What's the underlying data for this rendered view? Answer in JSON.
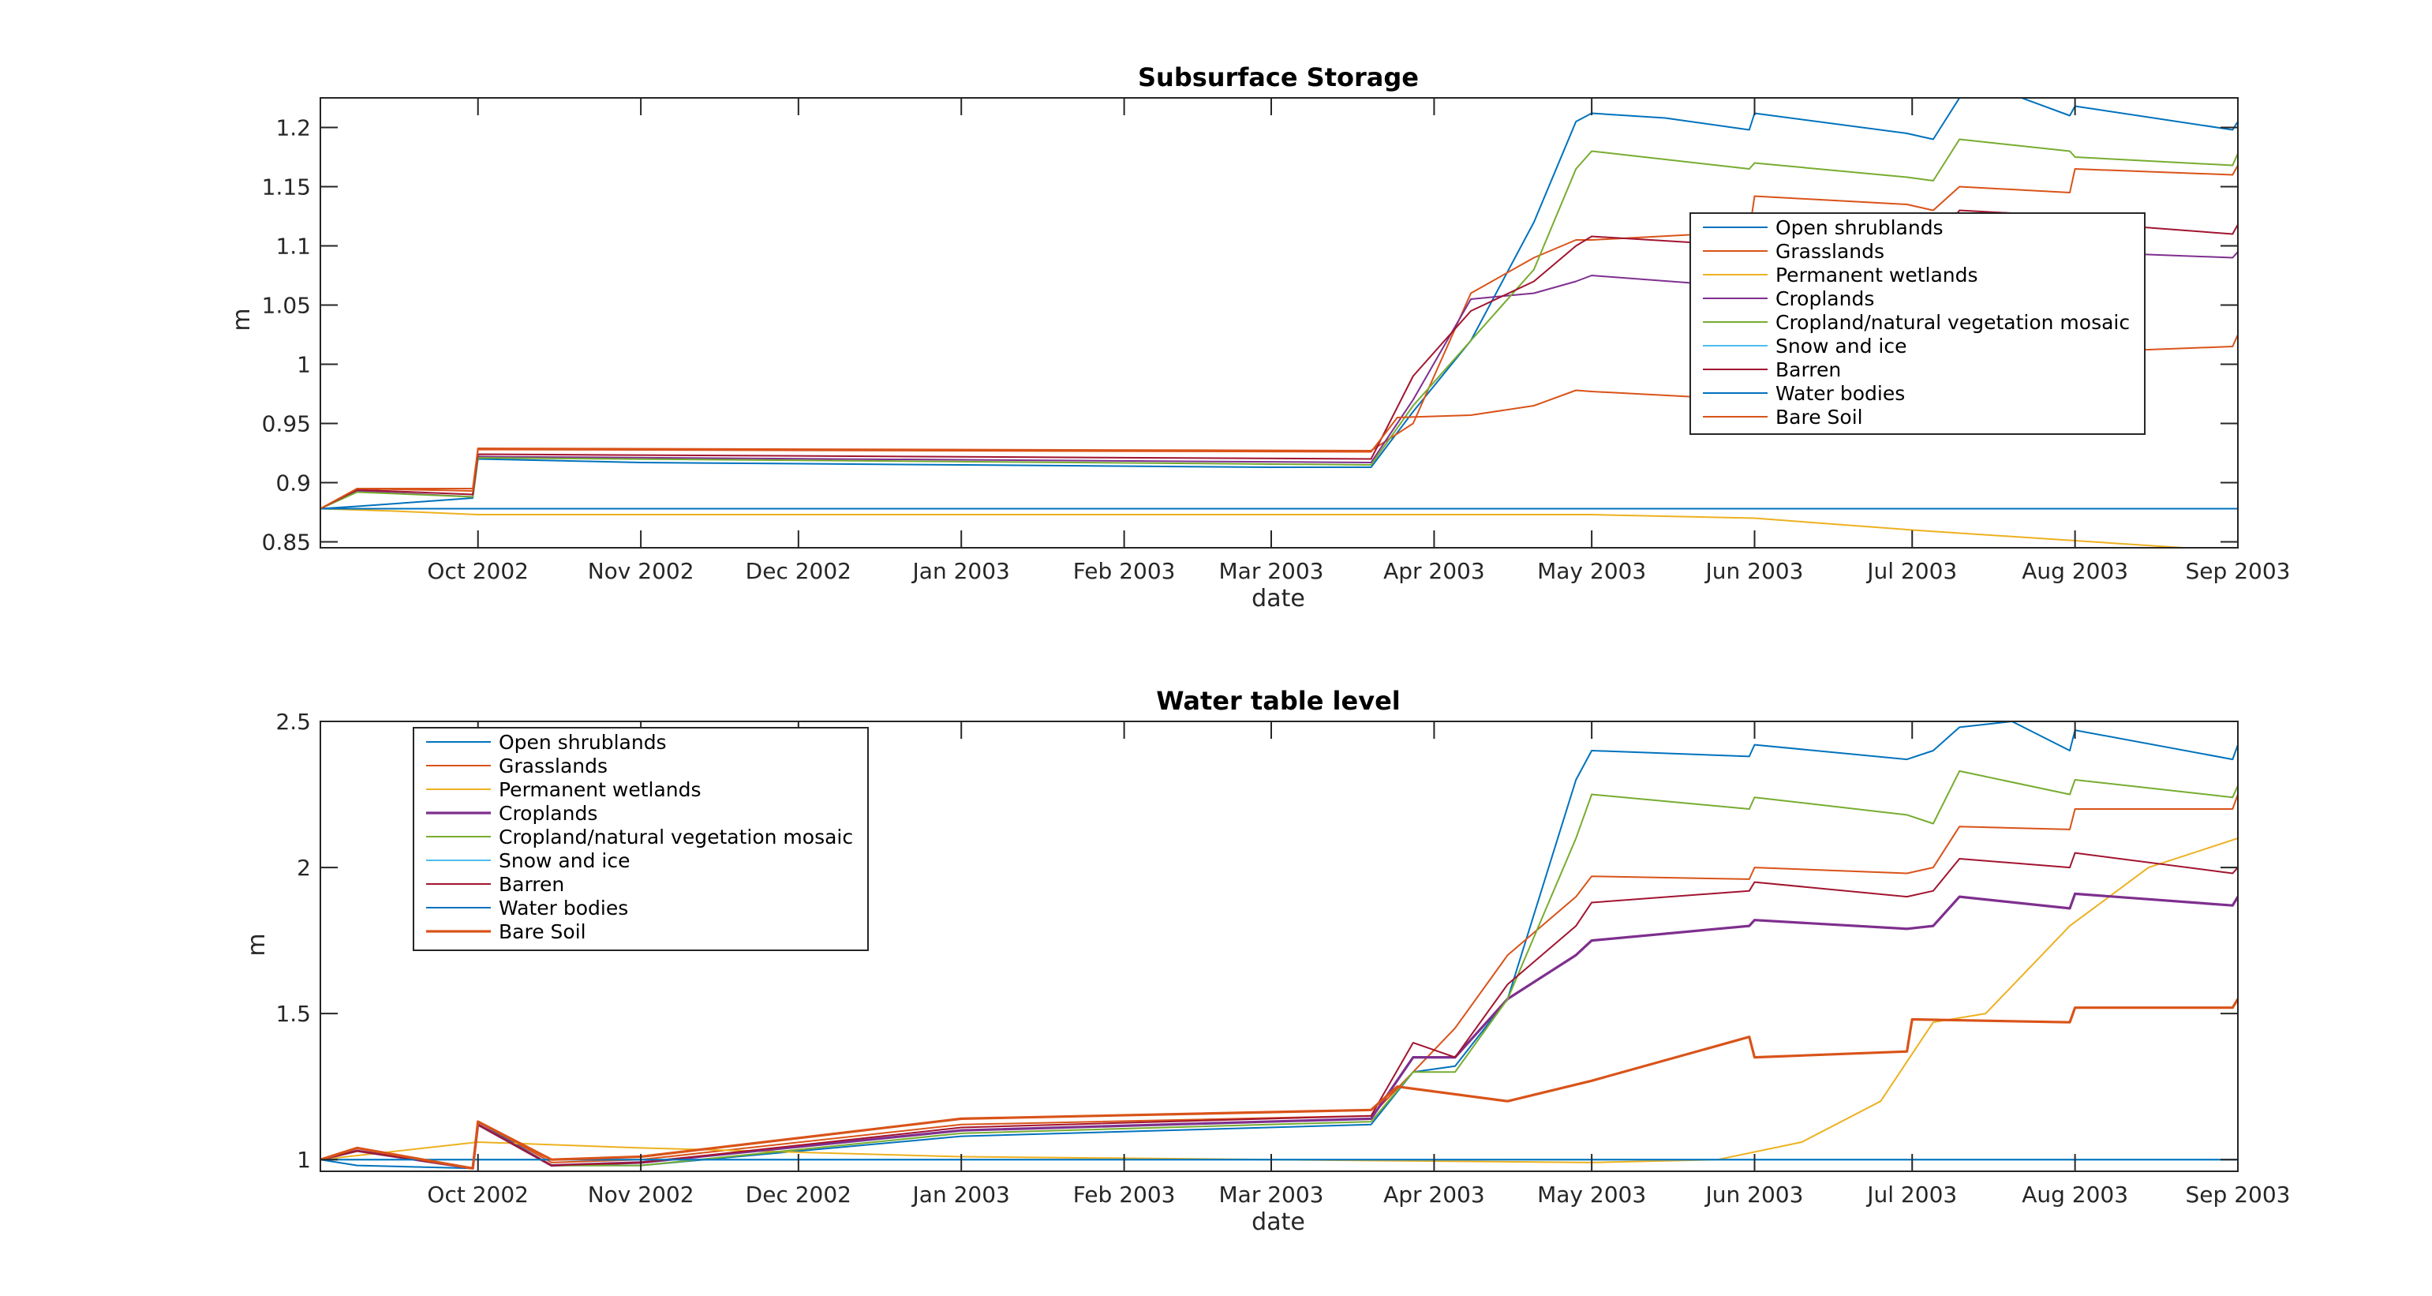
{
  "figure": {
    "background": "#ffffff",
    "x_tick_labels": [
      "Oct 2002",
      "Nov 2002",
      "Dec 2002",
      "Jan 2003",
      "Feb 2003",
      "Mar 2003",
      "Apr 2003",
      "May 2003",
      "Jun 2003",
      "Jul 2003",
      "Aug 2003",
      "Sep 2003"
    ],
    "x_tick_dates": [
      "2002-10-01",
      "2002-11-01",
      "2002-12-01",
      "2003-01-01",
      "2003-02-01",
      "2003-03-01",
      "2003-04-01",
      "2003-05-01",
      "2003-06-01",
      "2003-07-01",
      "2003-08-01",
      "2003-09-01"
    ]
  },
  "chart_data": [
    {
      "type": "line",
      "title": "Subsurface Storage",
      "xlabel": "date",
      "ylabel": "m",
      "xlim": [
        "2002-09-01",
        "2003-09-01"
      ],
      "ylim": [
        0.845,
        1.225
      ],
      "yticks": [
        0.85,
        0.9,
        0.95,
        1,
        1.05,
        1.1,
        1.15,
        1.2
      ],
      "ytick_labels": [
        "0.85",
        "0.9",
        "0.95",
        "1",
        "1.05",
        "1.1",
        "1.15",
        "1.2"
      ],
      "legend_position": "right",
      "series": [
        {
          "name": "Open shrublands",
          "color": "#0072BD",
          "x": [
            "2002-09-01",
            "2002-09-08",
            "2002-09-30",
            "2002-10-01",
            "2002-11-01",
            "2003-01-01",
            "2003-03-01",
            "2003-03-20",
            "2003-03-28",
            "2003-04-08",
            "2003-04-20",
            "2003-04-28",
            "2003-05-01",
            "2003-05-15",
            "2003-05-31",
            "2003-06-01",
            "2003-06-30",
            "2003-07-05",
            "2003-07-10",
            "2003-07-20",
            "2003-07-31",
            "2003-08-01",
            "2003-08-31",
            "2003-09-01"
          ],
          "values": [
            0.878,
            0.88,
            0.887,
            0.92,
            0.917,
            0.915,
            0.913,
            0.913,
            0.96,
            1.02,
            1.12,
            1.205,
            1.212,
            1.208,
            1.198,
            1.212,
            1.195,
            1.19,
            1.225,
            1.228,
            1.21,
            1.218,
            1.198,
            1.205
          ]
        },
        {
          "name": "Grasslands",
          "color": "#D95319",
          "x": [
            "2002-09-01",
            "2002-09-08",
            "2002-09-30",
            "2002-10-01",
            "2003-03-20",
            "2003-03-28",
            "2003-04-08",
            "2003-04-20",
            "2003-04-28",
            "2003-05-01",
            "2003-05-31",
            "2003-06-01",
            "2003-06-30",
            "2003-07-05",
            "2003-07-10",
            "2003-07-31",
            "2003-08-01",
            "2003-08-31",
            "2003-09-01"
          ],
          "values": [
            0.878,
            0.895,
            0.895,
            0.929,
            0.927,
            0.95,
            1.06,
            1.09,
            1.105,
            1.105,
            1.112,
            1.142,
            1.135,
            1.13,
            1.15,
            1.145,
            1.165,
            1.16,
            1.168
          ]
        },
        {
          "name": "Permanent wetlands",
          "color": "#EDB120",
          "x": [
            "2002-09-01",
            "2002-09-15",
            "2002-10-01",
            "2003-04-01",
            "2003-05-01",
            "2003-06-01",
            "2003-07-01",
            "2003-08-01",
            "2003-09-01"
          ],
          "values": [
            0.878,
            0.876,
            0.873,
            0.873,
            0.873,
            0.87,
            0.86,
            0.851,
            0.842
          ]
        },
        {
          "name": "Croplands",
          "color": "#7E2F8E",
          "x": [
            "2002-09-01",
            "2002-09-08",
            "2002-09-30",
            "2002-10-01",
            "2003-03-20",
            "2003-03-28",
            "2003-04-08",
            "2003-04-20",
            "2003-04-28",
            "2003-05-01",
            "2003-05-31",
            "2003-06-01",
            "2003-06-30",
            "2003-07-05",
            "2003-07-10",
            "2003-07-31",
            "2003-08-01",
            "2003-08-31",
            "2003-09-01"
          ],
          "values": [
            0.878,
            0.893,
            0.888,
            0.922,
            0.917,
            0.97,
            1.055,
            1.06,
            1.07,
            1.075,
            1.065,
            1.075,
            1.07,
            1.065,
            1.09,
            1.085,
            1.095,
            1.09,
            1.095
          ]
        },
        {
          "name": "Cropland/natural vegetation mosaic",
          "color": "#77AC30",
          "x": [
            "2002-09-01",
            "2002-09-08",
            "2002-09-30",
            "2002-10-01",
            "2003-03-20",
            "2003-03-28",
            "2003-04-08",
            "2003-04-20",
            "2003-04-28",
            "2003-05-01",
            "2003-05-31",
            "2003-06-01",
            "2003-06-30",
            "2003-07-05",
            "2003-07-10",
            "2003-07-31",
            "2003-08-01",
            "2003-08-31",
            "2003-09-01"
          ],
          "values": [
            0.878,
            0.892,
            0.888,
            0.921,
            0.915,
            0.965,
            1.02,
            1.08,
            1.165,
            1.18,
            1.165,
            1.17,
            1.158,
            1.155,
            1.19,
            1.18,
            1.175,
            1.168,
            1.178
          ]
        },
        {
          "name": "Snow and ice",
          "color": "#4DBEEE",
          "x": [
            "2002-09-01",
            "2003-09-01"
          ],
          "values": [
            0.878,
            0.878
          ]
        },
        {
          "name": "Barren",
          "color": "#A2142F",
          "x": [
            "2002-09-01",
            "2002-09-08",
            "2002-09-30",
            "2002-10-01",
            "2003-03-20",
            "2003-03-28",
            "2003-04-08",
            "2003-04-20",
            "2003-04-28",
            "2003-05-01",
            "2003-05-31",
            "2003-06-01",
            "2003-06-30",
            "2003-07-05",
            "2003-07-10",
            "2003-07-31",
            "2003-08-01",
            "2003-08-31",
            "2003-09-01"
          ],
          "values": [
            0.878,
            0.894,
            0.89,
            0.924,
            0.92,
            0.99,
            1.045,
            1.07,
            1.1,
            1.108,
            1.1,
            1.115,
            1.105,
            1.1,
            1.13,
            1.125,
            1.12,
            1.11,
            1.118
          ]
        },
        {
          "name": "Water bodies",
          "color": "#0072BD",
          "x": [
            "2002-09-01",
            "2003-09-01"
          ],
          "values": [
            0.878,
            0.878
          ]
        },
        {
          "name": "Bare Soil",
          "color": "#D95319",
          "x": [
            "2002-09-01",
            "2002-09-08",
            "2002-09-30",
            "2002-10-01",
            "2003-03-20",
            "2003-03-25",
            "2003-04-08",
            "2003-04-20",
            "2003-04-28",
            "2003-05-01",
            "2003-05-31",
            "2003-06-01",
            "2003-06-30",
            "2003-07-01",
            "2003-07-31",
            "2003-08-01",
            "2003-08-31",
            "2003-09-01"
          ],
          "values": [
            0.878,
            0.895,
            0.893,
            0.928,
            0.926,
            0.955,
            0.957,
            0.965,
            0.978,
            0.977,
            0.97,
            0.985,
            0.975,
            0.995,
            0.99,
            1.01,
            1.015,
            1.025
          ]
        }
      ]
    },
    {
      "type": "line",
      "title": "Water table level",
      "xlabel": "date",
      "ylabel": "m",
      "xlim": [
        "2002-09-01",
        "2003-09-01"
      ],
      "ylim": [
        0.96,
        2.5
      ],
      "yticks": [
        1,
        1.5,
        2,
        2.5
      ],
      "ytick_labels": [
        "1",
        "1.5",
        "2",
        "2.5"
      ],
      "legend_position": "top-left",
      "series": [
        {
          "name": "Open shrublands",
          "color": "#0072BD",
          "x": [
            "2002-09-01",
            "2002-09-08",
            "2002-09-30",
            "2002-10-01",
            "2002-10-15",
            "2002-11-01",
            "2003-01-01",
            "2003-03-20",
            "2003-03-28",
            "2003-04-05",
            "2003-04-15",
            "2003-04-28",
            "2003-05-01",
            "2003-05-31",
            "2003-06-01",
            "2003-06-30",
            "2003-07-05",
            "2003-07-10",
            "2003-07-20",
            "2003-07-31",
            "2003-08-01",
            "2003-08-31",
            "2003-09-01"
          ],
          "values": [
            1.0,
            0.98,
            0.97,
            1.13,
            0.98,
            0.98,
            1.08,
            1.12,
            1.3,
            1.32,
            1.55,
            2.3,
            2.4,
            2.38,
            2.42,
            2.37,
            2.4,
            2.48,
            2.5,
            2.4,
            2.47,
            2.37,
            2.42
          ]
        },
        {
          "name": "Grasslands",
          "color": "#D95319",
          "x": [
            "2002-09-01",
            "2002-09-08",
            "2002-09-30",
            "2002-10-01",
            "2002-10-15",
            "2002-11-01",
            "2003-01-01",
            "2003-03-20",
            "2003-03-28",
            "2003-04-05",
            "2003-04-15",
            "2003-04-28",
            "2003-05-01",
            "2003-05-31",
            "2003-06-01",
            "2003-06-30",
            "2003-07-05",
            "2003-07-10",
            "2003-07-31",
            "2003-08-01",
            "2003-08-31",
            "2003-09-01"
          ],
          "values": [
            1.0,
            1.04,
            0.97,
            1.13,
            0.99,
            1.0,
            1.12,
            1.15,
            1.3,
            1.45,
            1.7,
            1.9,
            1.97,
            1.96,
            2.0,
            1.98,
            2.0,
            2.14,
            2.13,
            2.2,
            2.2,
            2.25
          ]
        },
        {
          "name": "Permanent wetlands",
          "color": "#EDB120",
          "x": [
            "2002-09-01",
            "2002-10-01",
            "2002-11-01",
            "2003-01-01",
            "2003-03-01",
            "2003-05-01",
            "2003-05-25",
            "2003-06-10",
            "2003-06-25",
            "2003-07-05",
            "2003-07-15",
            "2003-07-31",
            "2003-08-15",
            "2003-09-01"
          ],
          "values": [
            1.0,
            1.06,
            1.04,
            1.01,
            1.0,
            0.99,
            1.0,
            1.06,
            1.2,
            1.47,
            1.5,
            1.8,
            2.0,
            2.1
          ]
        },
        {
          "name": "Croplands",
          "color": "#7E2F8E",
          "x": [
            "2002-09-01",
            "2002-09-08",
            "2002-09-30",
            "2002-10-01",
            "2002-10-15",
            "2002-11-01",
            "2003-01-01",
            "2003-03-20",
            "2003-03-28",
            "2003-04-05",
            "2003-04-15",
            "2003-04-28",
            "2003-05-01",
            "2003-05-31",
            "2003-06-01",
            "2003-06-30",
            "2003-07-05",
            "2003-07-10",
            "2003-07-31",
            "2003-08-01",
            "2003-08-31",
            "2003-09-01"
          ],
          "values": [
            1.0,
            1.03,
            0.97,
            1.12,
            0.98,
            0.99,
            1.1,
            1.14,
            1.35,
            1.35,
            1.55,
            1.7,
            1.75,
            1.8,
            1.82,
            1.79,
            1.8,
            1.9,
            1.86,
            1.91,
            1.87,
            1.9
          ]
        },
        {
          "name": "Cropland/natural vegetation mosaic",
          "color": "#77AC30",
          "x": [
            "2002-09-01",
            "2002-09-08",
            "2002-09-30",
            "2002-10-01",
            "2002-10-15",
            "2002-11-01",
            "2003-01-01",
            "2003-03-20",
            "2003-03-28",
            "2003-04-05",
            "2003-04-15",
            "2003-04-28",
            "2003-05-01",
            "2003-05-31",
            "2003-06-01",
            "2003-06-30",
            "2003-07-05",
            "2003-07-10",
            "2003-07-31",
            "2003-08-01",
            "2003-08-31",
            "2003-09-01"
          ],
          "values": [
            1.0,
            1.03,
            0.97,
            1.12,
            0.98,
            0.98,
            1.09,
            1.13,
            1.3,
            1.3,
            1.55,
            2.1,
            2.25,
            2.2,
            2.24,
            2.18,
            2.15,
            2.33,
            2.25,
            2.3,
            2.24,
            2.28
          ]
        },
        {
          "name": "Snow and ice",
          "color": "#4DBEEE",
          "x": [
            "2002-09-01",
            "2003-09-01"
          ],
          "values": [
            1.0,
            1.0
          ]
        },
        {
          "name": "Barren",
          "color": "#A2142F",
          "x": [
            "2002-09-01",
            "2002-09-08",
            "2002-09-30",
            "2002-10-01",
            "2002-10-15",
            "2002-11-01",
            "2003-01-01",
            "2003-03-20",
            "2003-03-28",
            "2003-04-05",
            "2003-04-15",
            "2003-04-28",
            "2003-05-01",
            "2003-05-31",
            "2003-06-01",
            "2003-06-30",
            "2003-07-05",
            "2003-07-10",
            "2003-07-31",
            "2003-08-01",
            "2003-08-31",
            "2003-09-01"
          ],
          "values": [
            1.0,
            1.03,
            0.97,
            1.12,
            0.98,
            0.99,
            1.11,
            1.15,
            1.4,
            1.35,
            1.6,
            1.8,
            1.88,
            1.92,
            1.95,
            1.9,
            1.92,
            2.03,
            2.0,
            2.05,
            1.98,
            2.0
          ]
        },
        {
          "name": "Water bodies",
          "color": "#0072BD",
          "x": [
            "2002-09-01",
            "2003-09-01"
          ],
          "values": [
            1.0,
            1.0
          ]
        },
        {
          "name": "Bare Soil",
          "color": "#D95319",
          "x": [
            "2002-09-01",
            "2002-09-08",
            "2002-09-30",
            "2002-10-01",
            "2002-10-15",
            "2002-11-01",
            "2003-01-01",
            "2003-03-20",
            "2003-03-25",
            "2003-04-15",
            "2003-05-01",
            "2003-05-31",
            "2003-06-01",
            "2003-06-30",
            "2003-07-01",
            "2003-07-31",
            "2003-08-01",
            "2003-08-31",
            "2003-09-01"
          ],
          "values": [
            1.0,
            1.04,
            0.97,
            1.13,
            1.0,
            1.01,
            1.14,
            1.17,
            1.25,
            1.2,
            1.27,
            1.42,
            1.35,
            1.37,
            1.48,
            1.47,
            1.52,
            1.52,
            1.55
          ]
        }
      ]
    }
  ]
}
